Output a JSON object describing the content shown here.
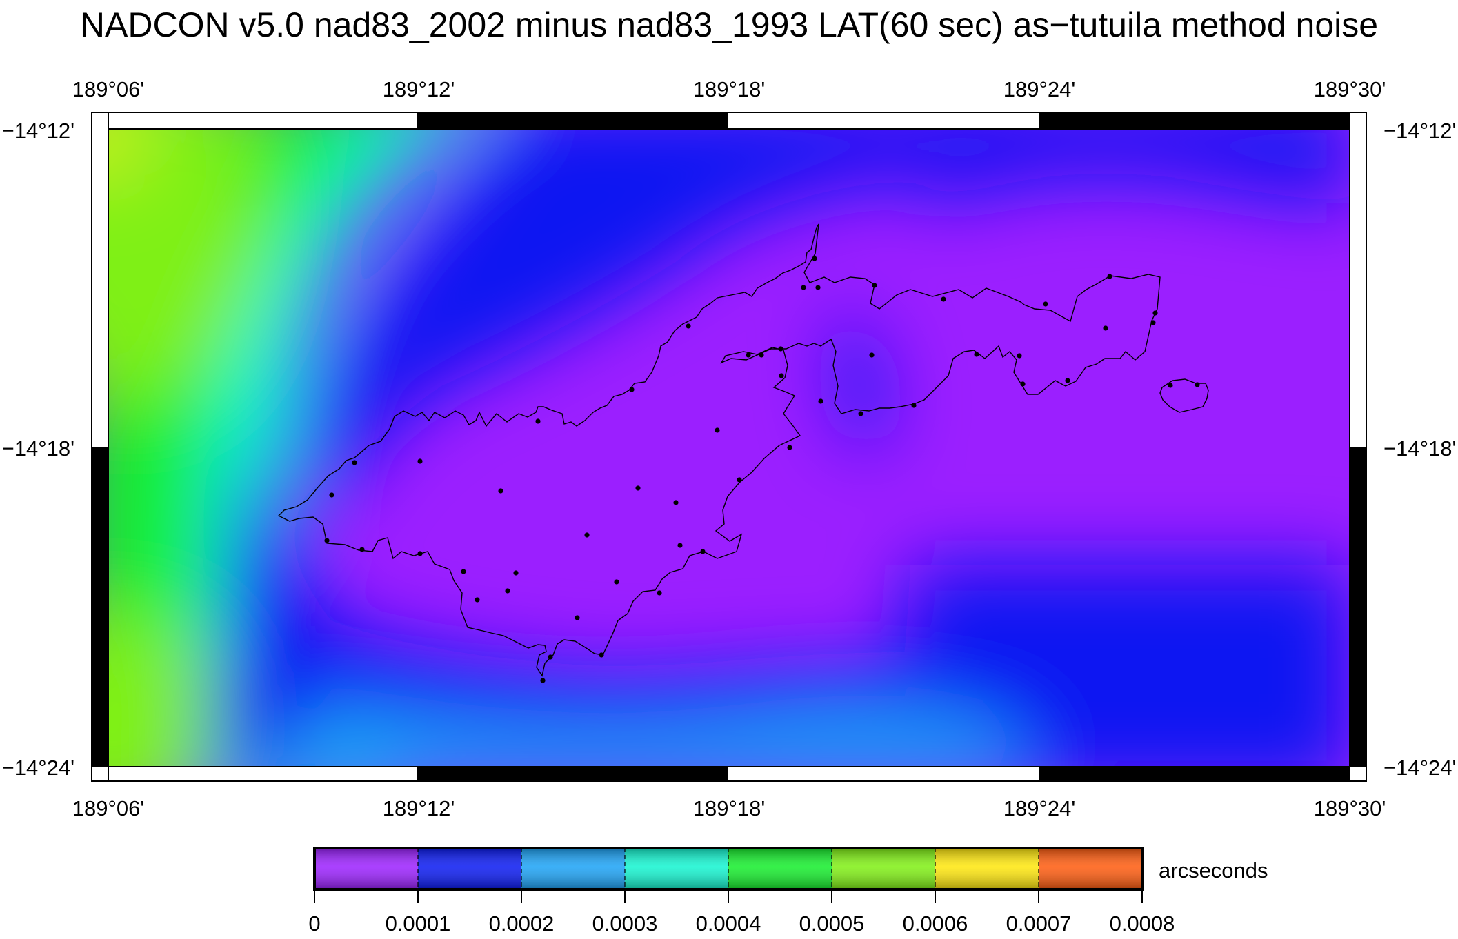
{
  "title": "NADCON v5.0 nad83_2002 minus nad83_1993 LAT(60 sec) as−tutuila method noise",
  "map": {
    "lon_ticks": [
      "189°06'",
      "189°12'",
      "189°18'",
      "189°24'",
      "189°30'"
    ],
    "lat_ticks": [
      "−14°12'",
      "−14°18'",
      "−14°24'"
    ],
    "frame": "alternating black/white border",
    "coastline": "Tutuila and Aunu'u islands (outline)",
    "stations_shown": true
  },
  "colorbar": {
    "unit_label": "arcseconds",
    "tick_labels": [
      "0",
      "0.0001",
      "0.0002",
      "0.0003",
      "0.0004",
      "0.0005",
      "0.0006",
      "0.0007",
      "0.0008"
    ],
    "colors": [
      "#9b1fff",
      "#0818f2",
      "#1aa2f6",
      "#11f5d0",
      "#13ee2a",
      "#7ff012",
      "#ffe70a",
      "#ff5a0c"
    ]
  }
}
